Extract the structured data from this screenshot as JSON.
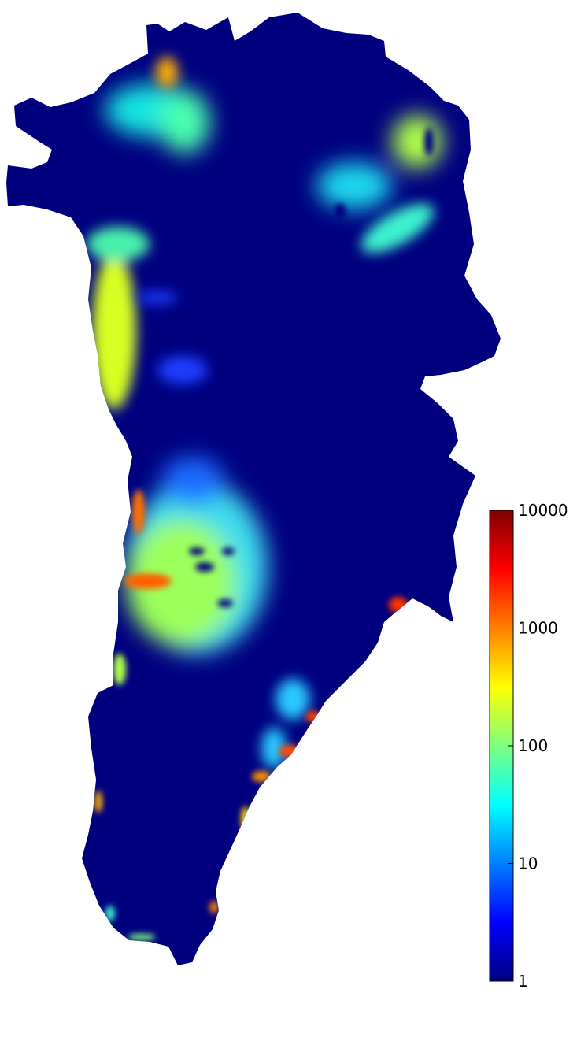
{
  "map": {
    "region": "greenland-ice-sheet",
    "background_color": "#00007f",
    "hotspots": [
      {
        "id": "northwest",
        "level": 60
      },
      {
        "id": "north",
        "level": 250
      },
      {
        "id": "northeast",
        "level": 300
      },
      {
        "id": "northeast-lower",
        "level": 150
      },
      {
        "id": "west-upper",
        "level": 350
      },
      {
        "id": "west-upper-inland",
        "level": 4
      },
      {
        "id": "central-west",
        "level": 400
      },
      {
        "id": "jakobshavn",
        "level": 5000
      },
      {
        "id": "southeast-1",
        "level": 3000
      },
      {
        "id": "southeast-2",
        "level": 3000
      },
      {
        "id": "southeast-3",
        "level": 2000
      },
      {
        "id": "east-kangerlussuaq",
        "level": 5000
      }
    ]
  },
  "colorbar": {
    "scale": "log",
    "min": 1,
    "max": 10000,
    "colormap": "jet",
    "ticks": [
      {
        "value": 10000,
        "label": "10000"
      },
      {
        "value": 1000,
        "label": "1000"
      },
      {
        "value": 100,
        "label": "100"
      },
      {
        "value": 10,
        "label": "10"
      },
      {
        "value": 1,
        "label": "1"
      }
    ],
    "stops": [
      "#00007f",
      "#0000ff",
      "#007fff",
      "#00ffff",
      "#7fff7f",
      "#ffff00",
      "#ff7f00",
      "#ff0000",
      "#7f0000"
    ]
  }
}
